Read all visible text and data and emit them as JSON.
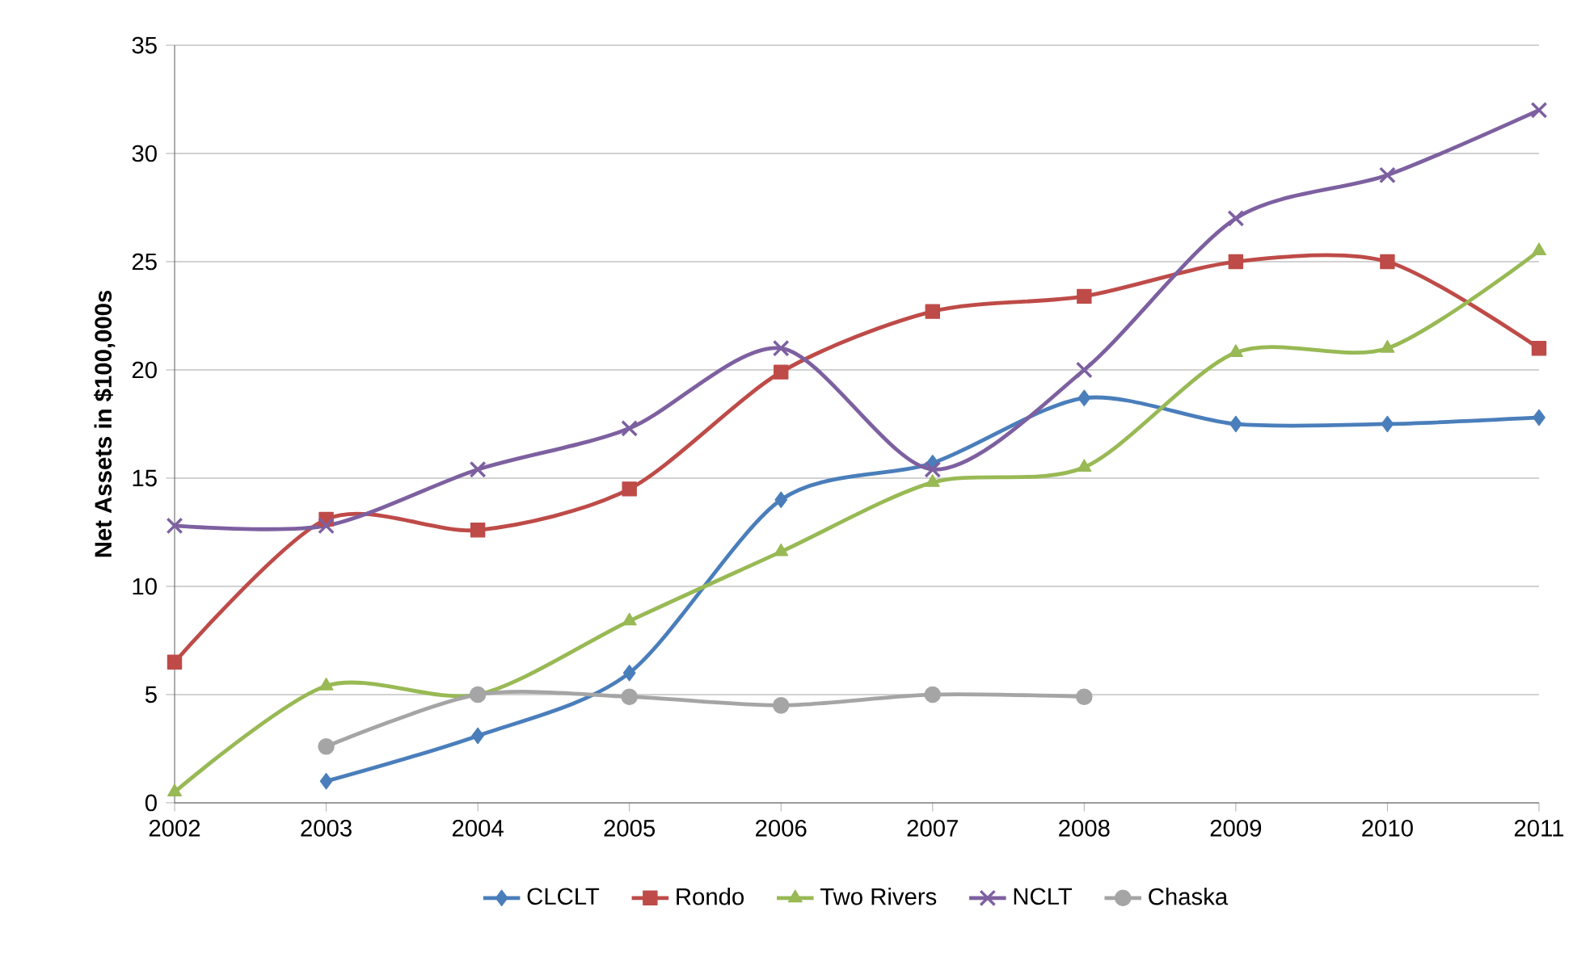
{
  "chart_data": {
    "type": "line",
    "ylabel": "Net Assets in $100,000s",
    "x": [
      2002,
      2003,
      2004,
      2005,
      2006,
      2007,
      2008,
      2009,
      2010,
      2011
    ],
    "series": [
      {
        "name": "CLCLT",
        "color": "#4a7ebb",
        "marker": "diamond",
        "values": [
          null,
          1.0,
          3.1,
          6.0,
          14.0,
          15.7,
          18.7,
          17.5,
          17.5,
          17.8
        ]
      },
      {
        "name": "Rondo",
        "color": "#be4b48",
        "marker": "square",
        "values": [
          6.5,
          13.1,
          12.6,
          14.5,
          19.9,
          22.7,
          23.4,
          25.0,
          25.0,
          21.0
        ]
      },
      {
        "name": "Two Rivers",
        "color": "#98b954",
        "marker": "triangle",
        "values": [
          0.5,
          5.4,
          5.0,
          8.4,
          11.6,
          14.8,
          15.5,
          20.8,
          21.0,
          25.5
        ]
      },
      {
        "name": "NCLT",
        "color": "#7d60a0",
        "marker": "cross",
        "values": [
          12.8,
          12.8,
          15.4,
          17.3,
          21.0,
          15.4,
          20.0,
          27.0,
          29.0,
          32.0
        ]
      },
      {
        "name": "Chaska",
        "color": "#a5a5a5",
        "marker": "circle",
        "values": [
          null,
          2.6,
          5.0,
          4.9,
          4.5,
          5.0,
          4.9,
          null,
          null,
          null
        ]
      }
    ],
    "xlim": [
      2002,
      2011
    ],
    "xticks": [
      2002,
      2003,
      2004,
      2005,
      2006,
      2007,
      2008,
      2009,
      2010,
      2011
    ],
    "ylim": [
      0,
      35
    ],
    "yticks": [
      0,
      5,
      10,
      15,
      20,
      25,
      30,
      35
    ],
    "grid": "y",
    "legend": "bottom",
    "line_style": "solid"
  }
}
